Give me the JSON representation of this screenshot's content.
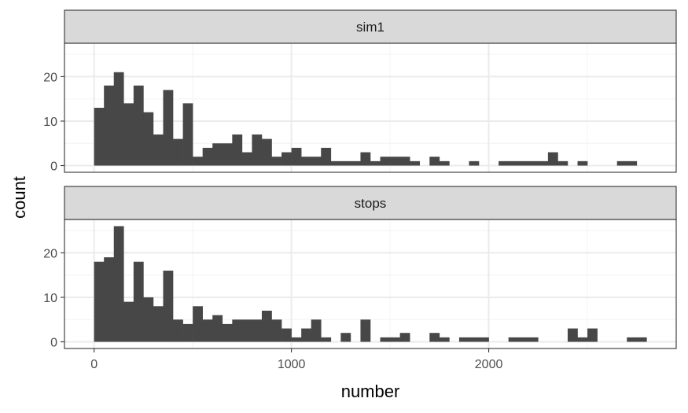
{
  "chart_data": {
    "type": "bar",
    "subtype": "faceted-histogram",
    "xlabel": "number",
    "ylabel": "count",
    "xlim": [
      -150,
      2950
    ],
    "x_ticks": [
      0,
      1000,
      2000
    ],
    "bin_width": 50,
    "bin_starts": [
      0,
      50,
      100,
      150,
      200,
      250,
      300,
      350,
      400,
      450,
      500,
      550,
      600,
      650,
      700,
      750,
      800,
      850,
      900,
      950,
      1000,
      1050,
      1100,
      1150,
      1200,
      1250,
      1300,
      1350,
      1400,
      1450,
      1500,
      1550,
      1600,
      1650,
      1700,
      1750,
      1800,
      1850,
      1900,
      1950,
      2000,
      2050,
      2100,
      2150,
      2200,
      2250,
      2300,
      2350,
      2400,
      2450,
      2500,
      2550,
      2600,
      2650,
      2700,
      2750
    ],
    "ylim": [
      -1.5,
      27.5
    ],
    "y_ticks": [
      0,
      10,
      20
    ],
    "grid": true,
    "colors": {
      "bar": "#474747",
      "strip_fill": "#d9d9d9",
      "panel_border": "#333333",
      "grid_major": "#ebebeb",
      "grid_minor": "#f5f5f5"
    },
    "panels": [
      {
        "strip_label": "sim1",
        "counts": [
          13,
          18,
          21,
          14,
          18,
          12,
          7,
          17,
          6,
          14,
          2,
          4,
          5,
          5,
          7,
          3,
          7,
          6,
          2,
          3,
          4,
          2,
          2,
          4,
          1,
          1,
          1,
          3,
          1,
          2,
          2,
          2,
          1,
          0,
          2,
          1,
          0,
          0,
          1,
          0,
          0,
          1,
          1,
          1,
          1,
          1,
          3,
          1,
          0,
          1,
          0,
          0,
          0,
          1,
          1,
          0
        ]
      },
      {
        "strip_label": "stops",
        "counts": [
          18,
          19,
          26,
          9,
          18,
          10,
          8,
          16,
          5,
          4,
          8,
          5,
          6,
          4,
          5,
          5,
          5,
          7,
          5,
          3,
          1,
          3,
          5,
          1,
          0,
          2,
          0,
          5,
          0,
          1,
          1,
          2,
          0,
          0,
          2,
          1,
          0,
          1,
          1,
          1,
          0,
          0,
          1,
          1,
          1,
          0,
          0,
          0,
          3,
          1,
          3,
          0,
          0,
          0,
          1,
          1
        ]
      }
    ]
  }
}
